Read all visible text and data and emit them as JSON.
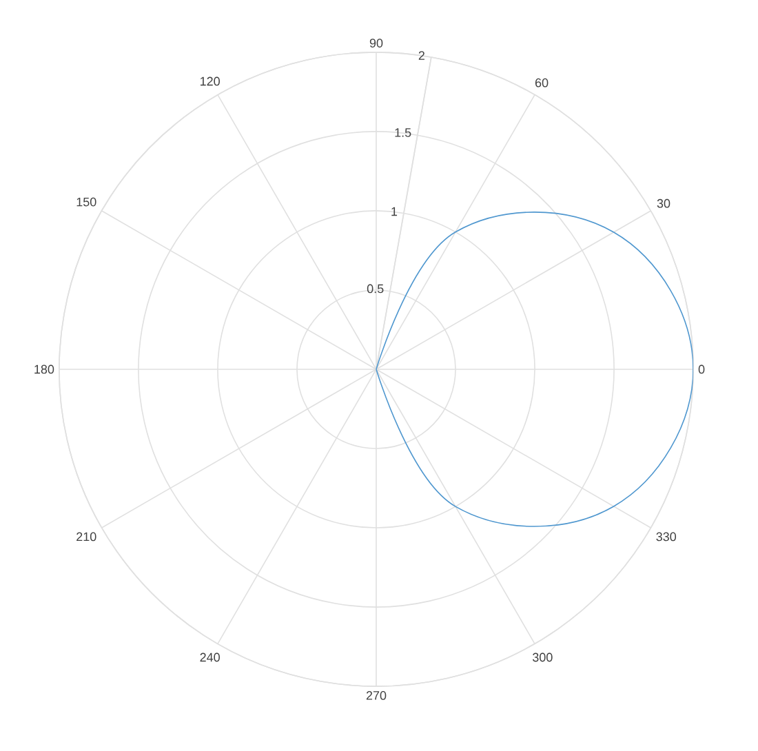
{
  "chart_data": {
    "type": "radar",
    "categories": [
      "90",
      "60",
      "30",
      "0",
      "330",
      "300",
      "270",
      "240",
      "210",
      "180",
      "150",
      "120"
    ],
    "series": [
      {
        "color": "#4f97cf",
        "values": [
          0,
          1.0,
          1.73,
          2,
          1.73,
          1.0,
          0,
          null,
          null,
          null,
          null,
          null
        ]
      }
    ],
    "ylim": [
      0,
      2
    ],
    "yticks": [
      0.5,
      1,
      1.5,
      2
    ],
    "grid": true
  }
}
